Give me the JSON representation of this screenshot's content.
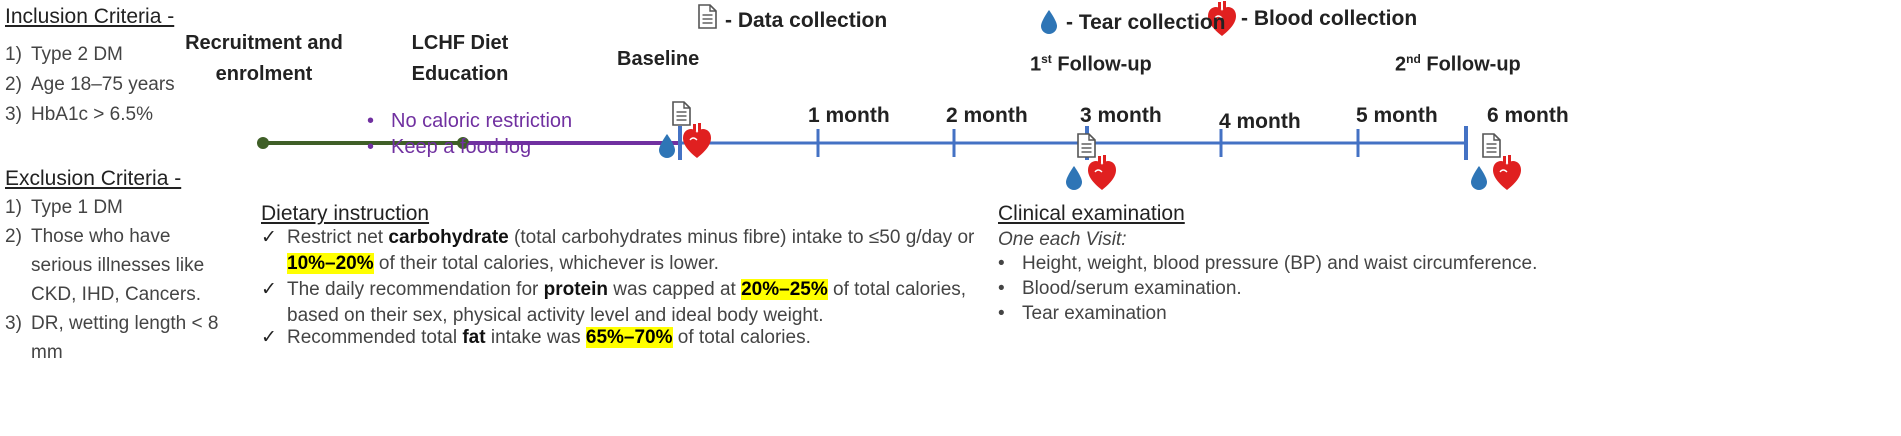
{
  "legend": {
    "data_collection": "- Data collection",
    "tear_collection": "- Tear collection",
    "blood_collection": "- Blood collection"
  },
  "inclusion": {
    "title": "Inclusion Criteria -",
    "items": [
      {
        "num": "1)",
        "text": "Type 2 DM"
      },
      {
        "num": "2)",
        "text": "Age 18–75 years"
      },
      {
        "num": "3)",
        "text": "HbA1c > 6.5%"
      }
    ]
  },
  "exclusion": {
    "title": "Exclusion Criteria -",
    "items": [
      {
        "num": "1)",
        "text": "Type 1 DM"
      },
      {
        "num": "2)",
        "line1": "Those who have",
        "line2": "serious illnesses like",
        "line3": "CKD, IHD, Cancers."
      },
      {
        "num": "3)",
        "line1": "DR, wetting length < 8",
        "line2": "mm"
      }
    ]
  },
  "phases": {
    "recruitment_line1": "Recruitment and",
    "recruitment_line2": "enrolment",
    "education_line1": "LCHF Diet",
    "education_line2": "Education",
    "baseline": "Baseline",
    "followup1_prefix": "1",
    "followup1_sup": "st",
    "followup1_suffix": " Follow-up",
    "followup2_prefix": "2",
    "followup2_sup": "nd",
    "followup2_suffix": " Follow-up"
  },
  "months": [
    "1 month",
    "2 month",
    "3 month",
    "4 month",
    "5 month",
    "6 month"
  ],
  "education_notes": [
    "No caloric restriction",
    "Keep a food log"
  ],
  "dietary": {
    "title": "Dietary instruction",
    "carb_a": "Restrict net ",
    "carb_term": "carbohydrate",
    "carb_b": " (total carbohydrates minus fibre) intake to ≤50 g/day or",
    "carb_hl": "10%–20%",
    "carb_c": " of their total calories, whichever is lower.",
    "protein_a": "The daily recommendation for ",
    "protein_term": "protein",
    "protein_b": " was capped at ",
    "protein_hl": "20%–25%",
    "protein_c": " of total calories,",
    "protein_d": "based on their sex, physical activity level and ideal body weight.",
    "fat_a": "Recommended total ",
    "fat_term": "fat",
    "fat_b": " intake was ",
    "fat_hl": "65%–70%",
    "fat_c": " of total calories."
  },
  "clinical": {
    "title": "Clinical examination",
    "subtitle": "One each Visit:",
    "items": [
      "Height, weight, blood pressure (BP) and waist circumference.",
      "Blood/serum examination.",
      "Tear examination"
    ]
  },
  "colors": {
    "green": "#3f5f27",
    "purple": "#7030a0",
    "blue": "#4472c4",
    "drop": "#2e75b6",
    "heart": "#e02020"
  },
  "icons": [
    "document-icon",
    "tear-drop-icon",
    "heart-icon"
  ]
}
